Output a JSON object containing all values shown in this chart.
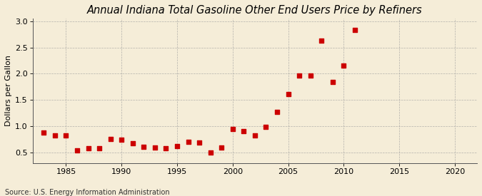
{
  "title": "Annual Indiana Total Gasoline Other End Users Price by Refiners",
  "ylabel": "Dollars per Gallon",
  "source": "Source: U.S. Energy Information Administration",
  "years": [
    1983,
    1984,
    1985,
    1986,
    1987,
    1988,
    1989,
    1990,
    1991,
    1992,
    1993,
    1994,
    1995,
    1996,
    1997,
    1998,
    1999,
    2000,
    2001,
    2002,
    2003,
    2004,
    2005,
    2006,
    2007,
    2008,
    2009,
    2010,
    2011
  ],
  "values": [
    0.89,
    0.83,
    0.83,
    0.54,
    0.59,
    0.58,
    0.76,
    0.75,
    0.68,
    0.61,
    0.6,
    0.59,
    0.63,
    0.71,
    0.69,
    0.51,
    0.6,
    0.95,
    0.91,
    0.83,
    0.99,
    1.27,
    1.62,
    1.97,
    1.96,
    2.63,
    1.84,
    2.15,
    2.83
  ],
  "marker_color": "#cc0000",
  "marker_size": 18,
  "background_color": "#f5edd8",
  "xlim": [
    1982,
    2022
  ],
  "ylim": [
    0.3,
    3.05
  ],
  "xticks": [
    1985,
    1990,
    1995,
    2000,
    2005,
    2010,
    2015,
    2020
  ],
  "yticks": [
    0.5,
    1.0,
    1.5,
    2.0,
    2.5,
    3.0
  ],
  "title_fontsize": 10.5,
  "label_fontsize": 8,
  "tick_fontsize": 8,
  "source_fontsize": 7
}
